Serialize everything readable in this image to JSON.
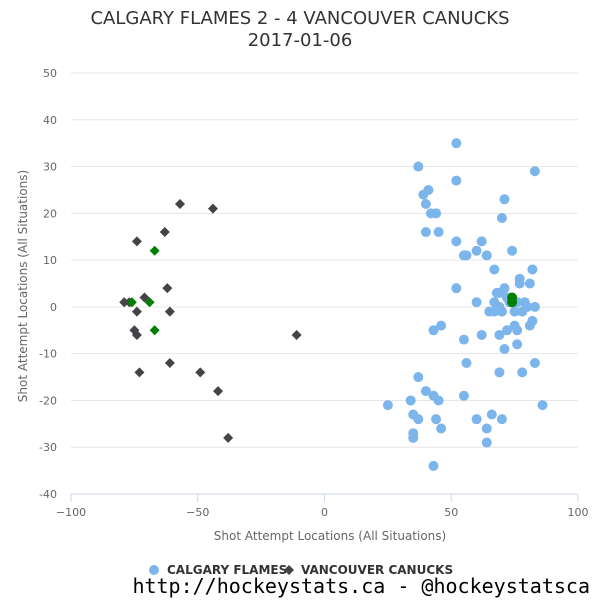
{
  "chart_data": {
    "type": "scatter",
    "title": "CALGARY FLAMES 2 - 4 VANCOUVER CANUCKS",
    "subtitle": "2017-01-06",
    "xlabel": "Shot Attempt Locations (All Situations)",
    "ylabel": "Shot Attempt Locations (All Situations)",
    "xlim": [
      -100,
      100
    ],
    "ylim": [
      -40,
      50
    ],
    "xticks": [
      -100,
      -50,
      0,
      50,
      100
    ],
    "yticks": [
      -40,
      -30,
      -20,
      -10,
      0,
      10,
      20,
      30,
      40,
      50
    ],
    "grid": "horizontal",
    "legend": "bottom-center",
    "series": [
      {
        "name": "CALGARY FLAMES",
        "marker": "circle",
        "color": "#7cb5ec",
        "goal_color": "#008000",
        "points": [
          [
            52,
            35
          ],
          [
            37,
            30
          ],
          [
            83,
            29
          ],
          [
            52,
            27
          ],
          [
            41,
            25
          ],
          [
            39,
            24
          ],
          [
            40,
            22
          ],
          [
            71,
            23
          ],
          [
            42,
            20
          ],
          [
            44,
            20
          ],
          [
            70,
            19
          ],
          [
            40,
            16
          ],
          [
            45,
            16
          ],
          [
            52,
            14
          ],
          [
            62,
            14
          ],
          [
            60,
            12
          ],
          [
            74,
            12
          ],
          [
            55,
            11
          ],
          [
            56,
            11
          ],
          [
            64,
            11
          ],
          [
            82,
            8
          ],
          [
            67,
            8
          ],
          [
            77,
            6
          ],
          [
            77,
            5
          ],
          [
            81,
            5
          ],
          [
            71,
            4
          ],
          [
            52,
            4
          ],
          [
            68,
            3
          ],
          [
            69,
            3
          ],
          [
            72,
            2
          ],
          [
            60,
            1
          ],
          [
            67,
            1
          ],
          [
            73,
            1
          ],
          [
            76,
            1
          ],
          [
            79,
            1
          ],
          [
            80,
            0
          ],
          [
            83,
            0
          ],
          [
            69,
            0
          ],
          [
            65,
            -1
          ],
          [
            67,
            -1
          ],
          [
            75,
            -1
          ],
          [
            78,
            -1
          ],
          [
            70,
            -1
          ],
          [
            82,
            -3
          ],
          [
            81,
            -4
          ],
          [
            75,
            -4
          ],
          [
            46,
            -4
          ],
          [
            43,
            -5
          ],
          [
            72,
            -5
          ],
          [
            76,
            -5
          ],
          [
            69,
            -6
          ],
          [
            62,
            -6
          ],
          [
            55,
            -7
          ],
          [
            76,
            -8
          ],
          [
            71,
            -9
          ],
          [
            56,
            -12
          ],
          [
            83,
            -12
          ],
          [
            69,
            -14
          ],
          [
            78,
            -14
          ],
          [
            37,
            -15
          ],
          [
            40,
            -18
          ],
          [
            43,
            -19
          ],
          [
            55,
            -19
          ],
          [
            34,
            -20
          ],
          [
            45,
            -20
          ],
          [
            25,
            -21
          ],
          [
            86,
            -21
          ],
          [
            35,
            -23
          ],
          [
            66,
            -23
          ],
          [
            37,
            -24
          ],
          [
            44,
            -24
          ],
          [
            60,
            -24
          ],
          [
            70,
            -24
          ],
          [
            64,
            -26
          ],
          [
            46,
            -26
          ],
          [
            35,
            -27
          ],
          [
            35,
            -28
          ],
          [
            64,
            -29
          ],
          [
            43,
            -34
          ]
        ],
        "goals": [
          [
            74,
            2
          ],
          [
            74,
            1
          ]
        ]
      },
      {
        "name": "VANCOUVER CANUCKS",
        "marker": "diamond",
        "color": "#434348",
        "goal_color": "#008000",
        "points": [
          [
            -57,
            22
          ],
          [
            -44,
            21
          ],
          [
            -63,
            16
          ],
          [
            -74,
            14
          ],
          [
            -62,
            4
          ],
          [
            -71,
            2
          ],
          [
            -79,
            1
          ],
          [
            -77,
            1
          ],
          [
            -74,
            -1
          ],
          [
            -61,
            -1
          ],
          [
            -75,
            -5
          ],
          [
            -74,
            -6
          ],
          [
            -11,
            -6
          ],
          [
            -61,
            -12
          ],
          [
            -73,
            -14
          ],
          [
            -49,
            -14
          ],
          [
            -42,
            -18
          ],
          [
            -38,
            -28
          ]
        ],
        "goals": [
          [
            -67,
            12
          ],
          [
            -69,
            1
          ],
          [
            -76,
            1
          ],
          [
            -67,
            -5
          ]
        ]
      }
    ]
  },
  "credit": "http://hockeystats.ca - @hockeystatsca"
}
